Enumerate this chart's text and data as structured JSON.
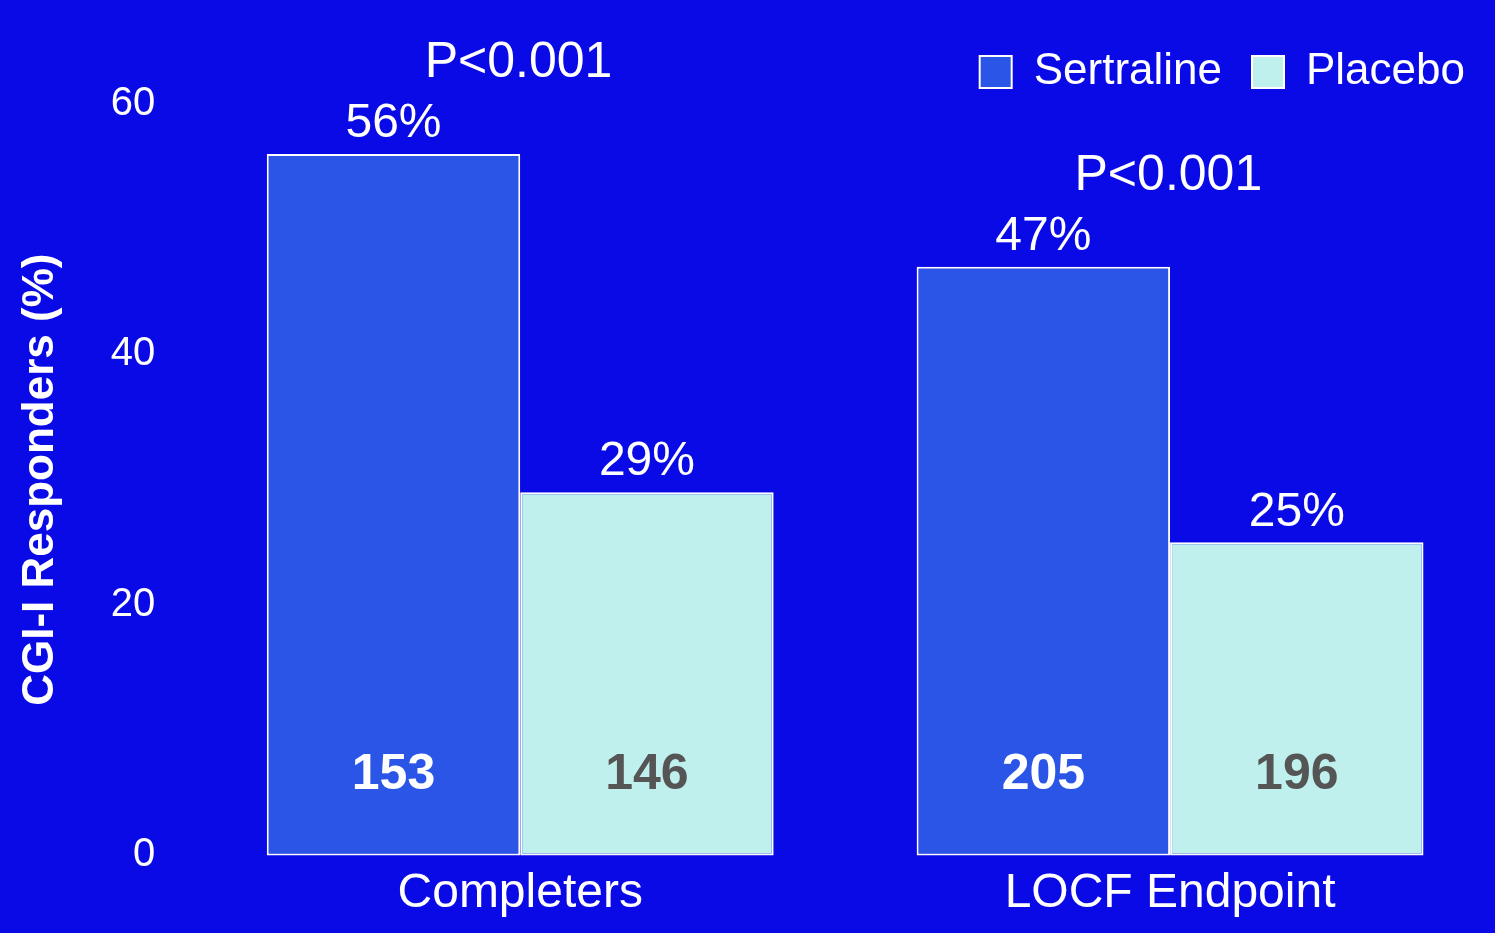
{
  "chart_data": {
    "type": "bar",
    "ylabel": "CGI-I Responders (%)",
    "categories": [
      "Completers",
      "LOCF Endpoint"
    ],
    "series": [
      {
        "name": "Sertraline",
        "color": "#2b55e6",
        "values": [
          56,
          47
        ],
        "value_labels": [
          "56%",
          "47%"
        ]
      },
      {
        "name": "Placebo",
        "color": "#bff0ee",
        "values": [
          29,
          25
        ],
        "value_labels": [
          "29%",
          "25%"
        ]
      }
    ],
    "ylim": [
      0,
      60
    ],
    "yticks": [
      0,
      20,
      40,
      60
    ],
    "grid": false,
    "legend": "top",
    "annotations": [
      "P<0.001",
      "P<0.001",
      "153",
      "146",
      "205",
      "196"
    ]
  }
}
